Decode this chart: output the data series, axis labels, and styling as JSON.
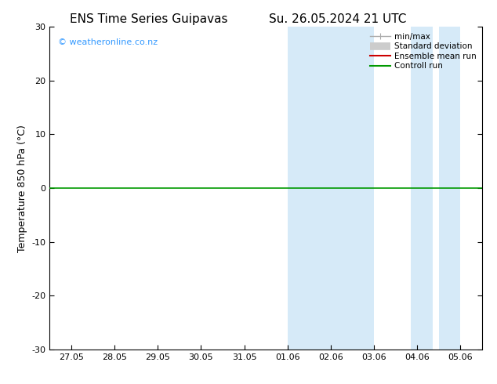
{
  "title_left": "ENS Time Series Guipavas",
  "title_right": "Su. 26.05.2024 21 UTC",
  "ylabel": "Temperature 850 hPa (°C)",
  "ylim": [
    -30,
    30
  ],
  "yticks": [
    -30,
    -20,
    -10,
    0,
    10,
    20,
    30
  ],
  "watermark": "© weatheronline.co.nz",
  "watermark_color": "#3399ff",
  "legend_labels": [
    "min/max",
    "Standard deviation",
    "Ensemble mean run",
    "Controll run"
  ],
  "legend_colors_line": [
    "#999999",
    "#bbbbbb",
    "#cc0000",
    "#009900"
  ],
  "shaded_color": "#d6eaf8",
  "shaded_regions": [
    [
      5.0,
      6.0
    ],
    [
      6.0,
      7.0
    ],
    [
      7.85,
      8.35
    ],
    [
      8.5,
      9.0
    ]
  ],
  "hline_y": 0,
  "hline_color": "#009900",
  "xtick_dates": [
    "27.05",
    "28.05",
    "29.05",
    "30.05",
    "31.05",
    "01.06",
    "02.06",
    "03.06",
    "04.06",
    "05.06"
  ],
  "xtick_positions": [
    0,
    1,
    2,
    3,
    4,
    5,
    6,
    7,
    8,
    9
  ],
  "xmin": -0.5,
  "xmax": 9.5,
  "background_color": "#ffffff",
  "title_fontsize": 11,
  "axis_fontsize": 8,
  "ylabel_fontsize": 9
}
